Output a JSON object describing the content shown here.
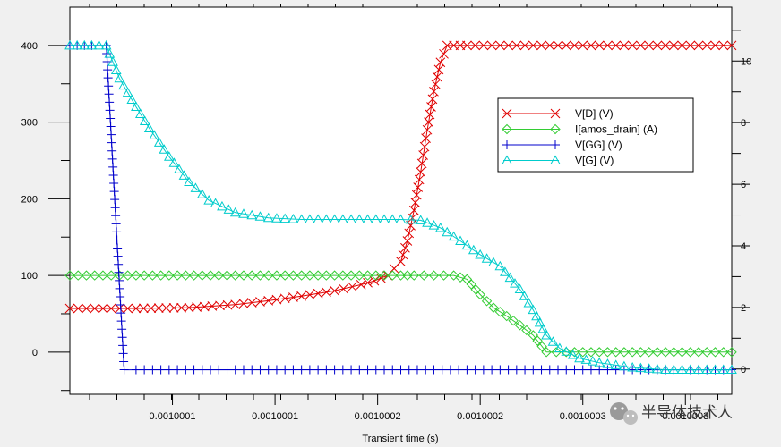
{
  "chart_data": {
    "type": "line",
    "xlabel": "Transient time (s)",
    "x_tick_labels": [
      "0.0010001",
      "0.0010001",
      "0.0010002",
      "0.0010002",
      "0.0010003",
      "0.0010003"
    ],
    "y_left_ticks": [
      0,
      100,
      200,
      300,
      400
    ],
    "y_right_ticks": [
      0,
      2,
      4,
      6,
      8,
      10
    ],
    "y_left_range": [
      -55,
      450
    ],
    "y_right_range": [
      -0.82,
      11.75
    ],
    "x_range": [
      0,
      1
    ],
    "grid": false,
    "legend_position": "top-right",
    "series": [
      {
        "name": "V[D] (V)",
        "axis": "left",
        "color": "#e00000",
        "marker": "x",
        "x": [
          0,
          0.1,
          0.18,
          0.25,
          0.3,
          0.35,
          0.4,
          0.44,
          0.46,
          0.48,
          0.5,
          0.51,
          0.52,
          0.53,
          0.54,
          0.55,
          0.56,
          0.57,
          0.58,
          0.59,
          0.6,
          0.65,
          0.7,
          0.75,
          0.8,
          0.85,
          0.9,
          0.95,
          1.0
        ],
        "values": [
          57,
          57,
          58,
          62,
          67,
          73,
          80,
          88,
          93,
          100,
          118,
          145,
          185,
          235,
          290,
          340,
          378,
          400,
          400,
          400,
          400,
          400,
          400,
          400,
          400,
          400,
          400,
          400,
          400
        ]
      },
      {
        "name": "I[amos_drain] (A)",
        "axis": "left",
        "color": "#33cc33",
        "marker": "diamond",
        "x": [
          0,
          0.1,
          0.2,
          0.3,
          0.4,
          0.5,
          0.52,
          0.55,
          0.58,
          0.6,
          0.62,
          0.64,
          0.66,
          0.68,
          0.7,
          0.72,
          0.75,
          0.8,
          0.85,
          0.9,
          0.95,
          1.0
        ],
        "values": [
          100,
          100,
          100,
          100,
          100,
          100,
          100,
          100,
          100,
          95,
          75,
          58,
          47,
          35,
          22,
          0,
          0,
          0,
          0,
          0,
          0,
          0
        ]
      },
      {
        "name": "V[GG] (V)",
        "axis": "left",
        "color": "#0000cc",
        "marker": "plus",
        "x": [
          0,
          0.055,
          0.082,
          0.1,
          0.2,
          0.3,
          0.4,
          0.5,
          0.6,
          0.7,
          0.8,
          0.9,
          1.0
        ],
        "values": [
          400,
          400,
          -23,
          -23,
          -23,
          -23,
          -23,
          -23,
          -23,
          -23,
          -23,
          -23,
          -23
        ]
      },
      {
        "name": "V[G] (V)",
        "axis": "left",
        "color": "#00cccc",
        "marker": "triangle",
        "x": [
          0,
          0.055,
          0.075,
          0.1,
          0.12,
          0.15,
          0.18,
          0.21,
          0.25,
          0.3,
          0.35,
          0.4,
          0.45,
          0.5,
          0.53,
          0.56,
          0.59,
          0.62,
          0.65,
          0.68,
          0.7,
          0.72,
          0.74,
          0.77,
          0.8,
          0.85,
          0.9,
          0.95,
          1.0
        ],
        "values": [
          400,
          400,
          357,
          320,
          292,
          255,
          222,
          198,
          182,
          175,
          173,
          173,
          173,
          173,
          172,
          162,
          145,
          127,
          112,
          82,
          55,
          22,
          5,
          -8,
          -14,
          -20,
          -23,
          -23,
          -23
        ]
      }
    ]
  },
  "watermark": {
    "text": "半导体技术人",
    "icon": "wechat-icon"
  }
}
